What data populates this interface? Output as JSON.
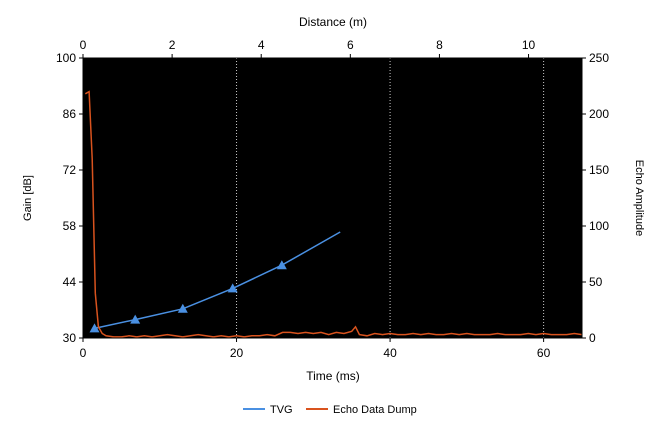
{
  "chart_data": {
    "type": "line",
    "background": "#000000",
    "axes": {
      "x_bottom": {
        "label": "Time (ms)",
        "range": [
          0,
          65
        ],
        "ticks": [
          0,
          20,
          40,
          60
        ]
      },
      "x_top": {
        "label": "Distance (m)",
        "range": [
          0,
          11.2
        ],
        "ticks": [
          0,
          2,
          4,
          6,
          8,
          10
        ]
      },
      "y_left": {
        "label": "Gain [dB]",
        "range": [
          30,
          100
        ],
        "ticks": [
          30,
          44,
          58,
          72,
          86,
          100
        ]
      },
      "y_right": {
        "label": "Echo Amplitude",
        "range": [
          0,
          250
        ],
        "ticks": [
          0,
          50,
          100,
          150,
          200,
          250
        ]
      }
    },
    "vertical_gridlines_x": [
      20,
      40,
      60
    ],
    "series": [
      {
        "name": "TVG",
        "color": "#4A90E2",
        "axis": "y_left",
        "marker": "triangle",
        "x": [
          1.5,
          6.8,
          13,
          19.5,
          25.9,
          33.5
        ],
        "y": [
          32.4,
          34.6,
          37.3,
          42.4,
          48.2,
          56.5
        ],
        "markers_at": [
          0,
          1,
          2,
          3,
          4
        ]
      },
      {
        "name": "Echo Data Dump",
        "color": "#D9531E",
        "axis": "y_right",
        "x": [
          0.3,
          0.8,
          1.2,
          1.6,
          2.0,
          2.5,
          3,
          4,
          5,
          6,
          7,
          8,
          9,
          10,
          11,
          12,
          13,
          14,
          15,
          16,
          17,
          18,
          19,
          20,
          21,
          22,
          23,
          24,
          25,
          26,
          27,
          28,
          29,
          30,
          31,
          32,
          33,
          34,
          35,
          35.5,
          36,
          37,
          38,
          39,
          40,
          41,
          42,
          43,
          44,
          45,
          46,
          47,
          48,
          49,
          50,
          51,
          52,
          53,
          54,
          55,
          56,
          57,
          58,
          59,
          60,
          61,
          62,
          63,
          64,
          65
        ],
        "y": [
          218,
          220,
          160,
          40,
          10,
          4,
          2,
          1,
          1,
          2,
          1,
          2,
          1,
          2,
          3,
          2,
          1,
          2,
          3,
          2,
          1,
          2,
          1,
          2,
          1,
          2,
          2,
          3,
          2,
          5,
          5,
          4,
          5,
          4,
          5,
          3,
          5,
          4,
          6,
          10,
          3,
          2,
          4,
          3,
          4,
          3,
          3,
          4,
          3,
          4,
          3,
          3,
          4,
          3,
          4,
          3,
          3,
          3,
          4,
          3,
          3,
          3,
          4,
          3,
          4,
          3,
          3,
          3,
          4,
          3
        ]
      }
    ],
    "legend": {
      "placement": "bottom",
      "entries": [
        "TVG",
        "Echo Data Dump"
      ]
    }
  }
}
